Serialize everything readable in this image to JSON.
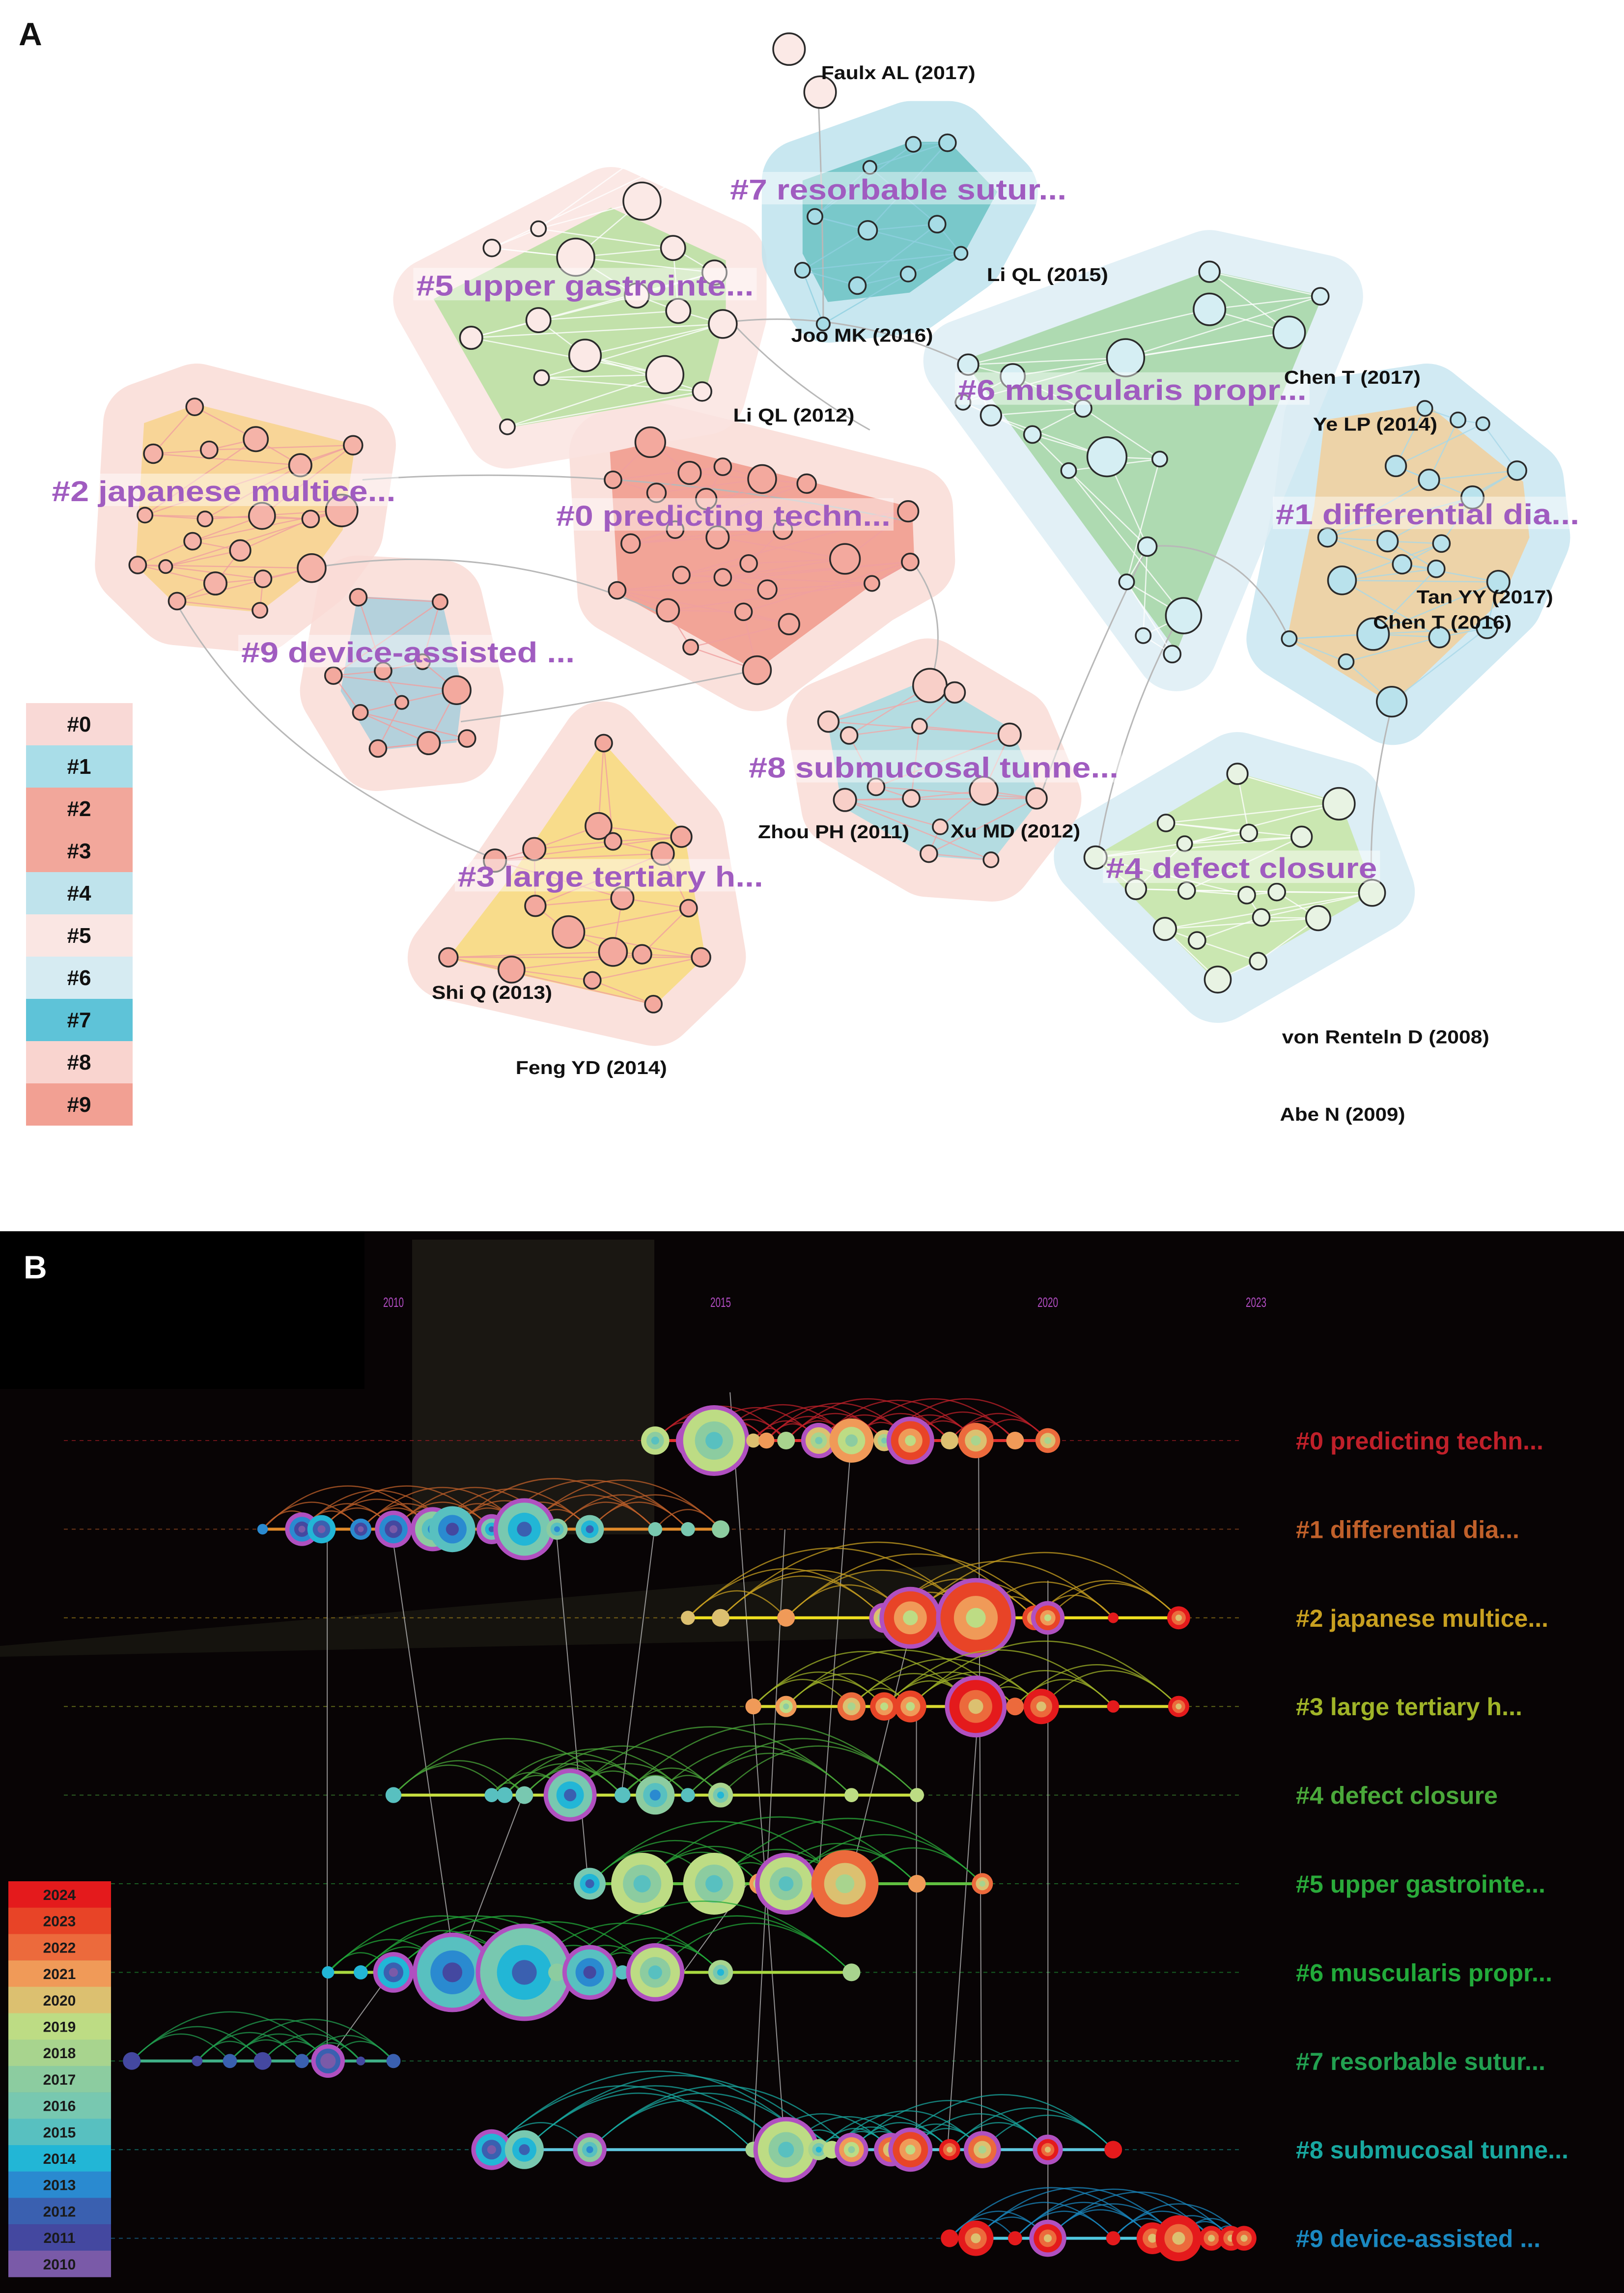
{
  "panel_a": {
    "label": "A",
    "cluster_label_color": "#a05cc0",
    "clusters": [
      {
        "id": "#0",
        "label": "#0 predicting techn...",
        "hull_color": "#f19a8c",
        "halo_color": "#fadcd7",
        "node_color": "#f3a99e",
        "edge_color": "#f0a0a0"
      },
      {
        "id": "#1",
        "label": "#1 differential dia...",
        "hull_color": "#f3cf9c",
        "halo_color": "#c9e7f1",
        "node_color": "#b9e2ec",
        "edge_color": "#a8d8e8"
      },
      {
        "id": "#2",
        "label": "#2 japanese multice...",
        "hull_color": "#f8d48c",
        "halo_color": "#fadcd7",
        "node_color": "#f5b3a8",
        "edge_color": "#f0a0a0"
      },
      {
        "id": "#3",
        "label": "#3 large tertiary h...",
        "hull_color": "#f8dc7e",
        "halo_color": "#fadcd7",
        "node_color": "#f3a99e",
        "edge_color": "#f0a0a0"
      },
      {
        "id": "#4",
        "label": "#4 defect closure",
        "hull_color": "#c8e6a6",
        "halo_color": "#d6ecf4",
        "node_color": "#e8f3e3",
        "edge_color": "#ffffff"
      },
      {
        "id": "#5",
        "label": "#5 upper gastrointe...",
        "hull_color": "#b9e0a0",
        "halo_color": "#fbe4e1",
        "node_color": "#fbe9e6",
        "edge_color": "#ffffff"
      },
      {
        "id": "#6",
        "label": "#6 muscularis propr...",
        "hull_color": "#a6d7a6",
        "halo_color": "#deeef5",
        "node_color": "#d5eef3",
        "edge_color": "#ffffff"
      },
      {
        "id": "#7",
        "label": "#7 resorbable sutur...",
        "hull_color": "#6cc3c4",
        "halo_color": "#bfe3ee",
        "node_color": "#a7dce6",
        "edge_color": "#8fd0e0"
      },
      {
        "id": "#8",
        "label": "#8 submucosal tunne...",
        "hull_color": "#a8dce2",
        "halo_color": "#fadcd7",
        "node_color": "#f8cfc8",
        "edge_color": "#f0a8a8"
      },
      {
        "id": "#9",
        "label": "#9 device-assisted ...",
        "hull_color": "#a8cfdc",
        "halo_color": "#fadcd7",
        "node_color": "#f3a99e",
        "edge_color": "#f0a0a0"
      }
    ],
    "authors": [
      "Faulx AL (2017)",
      "Li QL (2015)",
      "Joo MK (2016)",
      "Li QL (2012)",
      "Chen T (2017)",
      "Ye LP (2014)",
      "Tan YY (2017)",
      "Chen T (2016)",
      "Zhou PH (2011)",
      "Xu MD (2012)",
      "Shi Q (2013)",
      "Feng YD (2014)",
      "von Renteln D (2008)",
      "Abe N (2009)"
    ],
    "legend": [
      {
        "label": "#0",
        "color": "#f9d9d6"
      },
      {
        "label": "#1",
        "color": "#a9dde8"
      },
      {
        "label": "#2",
        "color": "#f2a79b"
      },
      {
        "label": "#3",
        "color": "#f2a79b"
      },
      {
        "label": "#4",
        "color": "#bfe3ec"
      },
      {
        "label": "#5",
        "color": "#fae6e3"
      },
      {
        "label": "#6",
        "color": "#d6ebf2"
      },
      {
        "label": "#7",
        "color": "#5ec3d8"
      },
      {
        "label": "#8",
        "color": "#f9d4cf"
      },
      {
        "label": "#9",
        "color": "#f2a093"
      }
    ]
  },
  "panel_b": {
    "label": "B",
    "background": "#080405",
    "years": [
      "2010",
      "2015",
      "2020",
      "2023"
    ],
    "ring_color": "#b050c0",
    "rows": [
      {
        "label": "#0 predicting techn...",
        "color": "#c0202a",
        "line_color": "#e03030",
        "nodes": [
          [
            2014.0,
            16,
            2019,
            0
          ],
          [
            2014.6,
            16,
            2019,
            1
          ],
          [
            2014.9,
            35,
            2019,
            1
          ],
          [
            2015.5,
            8,
            2020,
            0
          ],
          [
            2015.7,
            9,
            2021,
            0
          ],
          [
            2016.0,
            10,
            2018,
            0
          ],
          [
            2016.5,
            15,
            2020,
            1
          ],
          [
            2017.0,
            25,
            2021,
            0
          ],
          [
            2017.5,
            12,
            2020,
            0
          ],
          [
            2017.9,
            22,
            2023,
            1
          ],
          [
            2018.5,
            10,
            2020,
            0
          ],
          [
            2018.9,
            20,
            2022,
            0
          ],
          [
            2019.5,
            10,
            2021,
            0
          ],
          [
            2020.0,
            14,
            2022,
            0
          ]
        ]
      },
      {
        "label": "#1 differential dia...",
        "color": "#c0602a",
        "line_color": "#e08a2a",
        "nodes": [
          [
            2008.0,
            6,
            2013,
            0
          ],
          [
            2008.6,
            14,
            2013,
            1
          ],
          [
            2008.9,
            16,
            2014,
            0
          ],
          [
            2009.5,
            12,
            2013,
            0
          ],
          [
            2010.0,
            16,
            2013,
            1
          ],
          [
            2010.6,
            20,
            2017,
            1
          ],
          [
            2010.9,
            26,
            2015,
            0
          ],
          [
            2011.5,
            12,
            2016,
            1
          ],
          [
            2012.0,
            30,
            2016,
            1
          ],
          [
            2012.5,
            12,
            2017,
            0
          ],
          [
            2013.0,
            16,
            2016,
            0
          ],
          [
            2014.0,
            8,
            2016,
            0
          ],
          [
            2014.5,
            8,
            2016,
            0
          ],
          [
            2015.0,
            10,
            2017,
            0
          ]
        ]
      },
      {
        "label": "#2 japanese multice...",
        "color": "#c8a020",
        "line_color": "#f0e020",
        "nodes": [
          [
            2014.5,
            8,
            2020,
            0
          ],
          [
            2015.0,
            10,
            2020,
            0
          ],
          [
            2016.0,
            10,
            2021,
            0
          ],
          [
            2017.5,
            12,
            2020,
            1
          ],
          [
            2017.9,
            30,
            2023,
            1
          ],
          [
            2018.9,
            40,
            2023,
            1
          ],
          [
            2019.8,
            14,
            2023,
            0
          ],
          [
            2020.0,
            14,
            2023,
            1
          ],
          [
            2021.0,
            6,
            2024,
            0
          ],
          [
            2022.0,
            13,
            2024,
            0
          ]
        ]
      },
      {
        "label": "#3 large tertiary h...",
        "color": "#a0b428",
        "line_color": "#d8d830",
        "nodes": [
          [
            2015.5,
            9,
            2021,
            0
          ],
          [
            2016.0,
            12,
            2021,
            0
          ],
          [
            2017.0,
            16,
            2022,
            0
          ],
          [
            2017.5,
            16,
            2023,
            0
          ],
          [
            2017.9,
            18,
            2023,
            0
          ],
          [
            2018.9,
            30,
            2024,
            1
          ],
          [
            2019.5,
            10,
            2022,
            0
          ],
          [
            2019.9,
            20,
            2024,
            0
          ],
          [
            2021.0,
            7,
            2024,
            0
          ],
          [
            2022.0,
            12,
            2024,
            0
          ]
        ]
      },
      {
        "label": "#4 defect closure",
        "color": "#4aa83a",
        "line_color": "#c8e040",
        "nodes": [
          [
            2010.0,
            9,
            2015,
            0
          ],
          [
            2011.5,
            8,
            2015,
            0
          ],
          [
            2011.7,
            9,
            2015,
            0
          ],
          [
            2012.0,
            10,
            2016,
            0
          ],
          [
            2012.7,
            25,
            2016,
            1
          ],
          [
            2013.5,
            9,
            2015,
            0
          ],
          [
            2014.0,
            22,
            2017,
            0
          ],
          [
            2014.5,
            8,
            2015,
            0
          ],
          [
            2015.0,
            14,
            2018,
            0
          ],
          [
            2017.0,
            8,
            2019,
            0
          ],
          [
            2018.0,
            8,
            2019,
            0
          ]
        ]
      },
      {
        "label": "#5 upper gastrointe...",
        "color": "#2aaa3a",
        "line_color": "#60c040",
        "nodes": [
          [
            2013.0,
            18,
            2016,
            0
          ],
          [
            2013.8,
            35,
            2019,
            0
          ],
          [
            2014.9,
            35,
            2019,
            0
          ],
          [
            2015.6,
            12,
            2021,
            0
          ],
          [
            2016.0,
            30,
            2019,
            1
          ],
          [
            2016.9,
            38,
            2022,
            0
          ],
          [
            2018.0,
            10,
            2021,
            0
          ],
          [
            2019.0,
            12,
            2022,
            0
          ]
        ]
      },
      {
        "label": "#6 muscularis propr...",
        "color": "#22aa3a",
        "line_color": "#a8d840",
        "nodes": [
          [
            2009.0,
            7,
            2014,
            0
          ],
          [
            2009.5,
            8,
            2014,
            0
          ],
          [
            2010.0,
            18,
            2014,
            1
          ],
          [
            2010.9,
            40,
            2015,
            1
          ],
          [
            2012.0,
            50,
            2016,
            1
          ],
          [
            2012.5,
            10,
            2017,
            0
          ],
          [
            2013.0,
            26,
            2015,
            1
          ],
          [
            2013.5,
            8,
            2015,
            0
          ],
          [
            2014.0,
            28,
            2019,
            1
          ],
          [
            2015.0,
            14,
            2018,
            0
          ],
          [
            2017.0,
            10,
            2018,
            0
          ]
        ]
      },
      {
        "label": "#7 resorbable sutur...",
        "color": "#22a050",
        "line_color": "#40b088",
        "nodes": [
          [
            2006.0,
            10,
            2011,
            0
          ],
          [
            2007.0,
            6,
            2011,
            0
          ],
          [
            2007.5,
            8,
            2012,
            0
          ],
          [
            2008.0,
            10,
            2011,
            0
          ],
          [
            2008.6,
            8,
            2012,
            0
          ],
          [
            2009.0,
            14,
            2012,
            1
          ],
          [
            2009.5,
            5,
            2011,
            0
          ],
          [
            2010.0,
            8,
            2012,
            0
          ]
        ]
      },
      {
        "label": "#8 submucosal tunne...",
        "color": "#18a8a0",
        "line_color": "#60c8e0",
        "nodes": [
          [
            2011.5,
            18,
            2014,
            1
          ],
          [
            2012.0,
            22,
            2016,
            0
          ],
          [
            2013.0,
            14,
            2017,
            1
          ],
          [
            2015.5,
            9,
            2018,
            0
          ],
          [
            2016.0,
            32,
            2019,
            1
          ],
          [
            2016.5,
            12,
            2018,
            0
          ],
          [
            2016.7,
            10,
            2019,
            0
          ],
          [
            2017.0,
            14,
            2021,
            1
          ],
          [
            2017.6,
            14,
            2022,
            1
          ],
          [
            2017.9,
            20,
            2023,
            1
          ],
          [
            2018.5,
            12,
            2024,
            0
          ],
          [
            2019.0,
            16,
            2022,
            1
          ],
          [
            2020.0,
            12,
            2024,
            1
          ],
          [
            2021.0,
            10,
            2024,
            0
          ]
        ]
      },
      {
        "label": "#9 device-assisted ...",
        "color": "#1a88c0",
        "line_color": "#50c8e0",
        "nodes": [
          [
            2018.5,
            10,
            2024,
            0
          ],
          [
            2018.9,
            20,
            2024,
            0
          ],
          [
            2019.5,
            8,
            2024,
            0
          ],
          [
            2020.0,
            16,
            2024,
            1
          ],
          [
            2021.0,
            8,
            2024,
            0
          ],
          [
            2021.6,
            18,
            2024,
            0
          ],
          [
            2022.0,
            26,
            2024,
            0
          ],
          [
            2022.5,
            14,
            2024,
            0
          ],
          [
            2022.8,
            14,
            2024,
            0
          ],
          [
            2023.0,
            14,
            2024,
            0
          ]
        ]
      }
    ],
    "legend": [
      {
        "year": "2024",
        "color": "#e41a1c"
      },
      {
        "year": "2023",
        "color": "#e84427"
      },
      {
        "year": "2022",
        "color": "#ec6a3c"
      },
      {
        "year": "2021",
        "color": "#f09a58"
      },
      {
        "year": "2020",
        "color": "#dcc070"
      },
      {
        "year": "2019",
        "color": "#bddc84"
      },
      {
        "year": "2018",
        "color": "#a8d48e"
      },
      {
        "year": "2017",
        "color": "#8ccca0"
      },
      {
        "year": "2016",
        "color": "#78c8b0"
      },
      {
        "year": "2015",
        "color": "#58c0c0"
      },
      {
        "year": "2014",
        "color": "#22b6d6"
      },
      {
        "year": "2013",
        "color": "#2a8ad0"
      },
      {
        "year": "2012",
        "color": "#3a60b0"
      },
      {
        "year": "2011",
        "color": "#4448a0"
      },
      {
        "year": "2010",
        "color": "#7a5aa8"
      }
    ]
  }
}
